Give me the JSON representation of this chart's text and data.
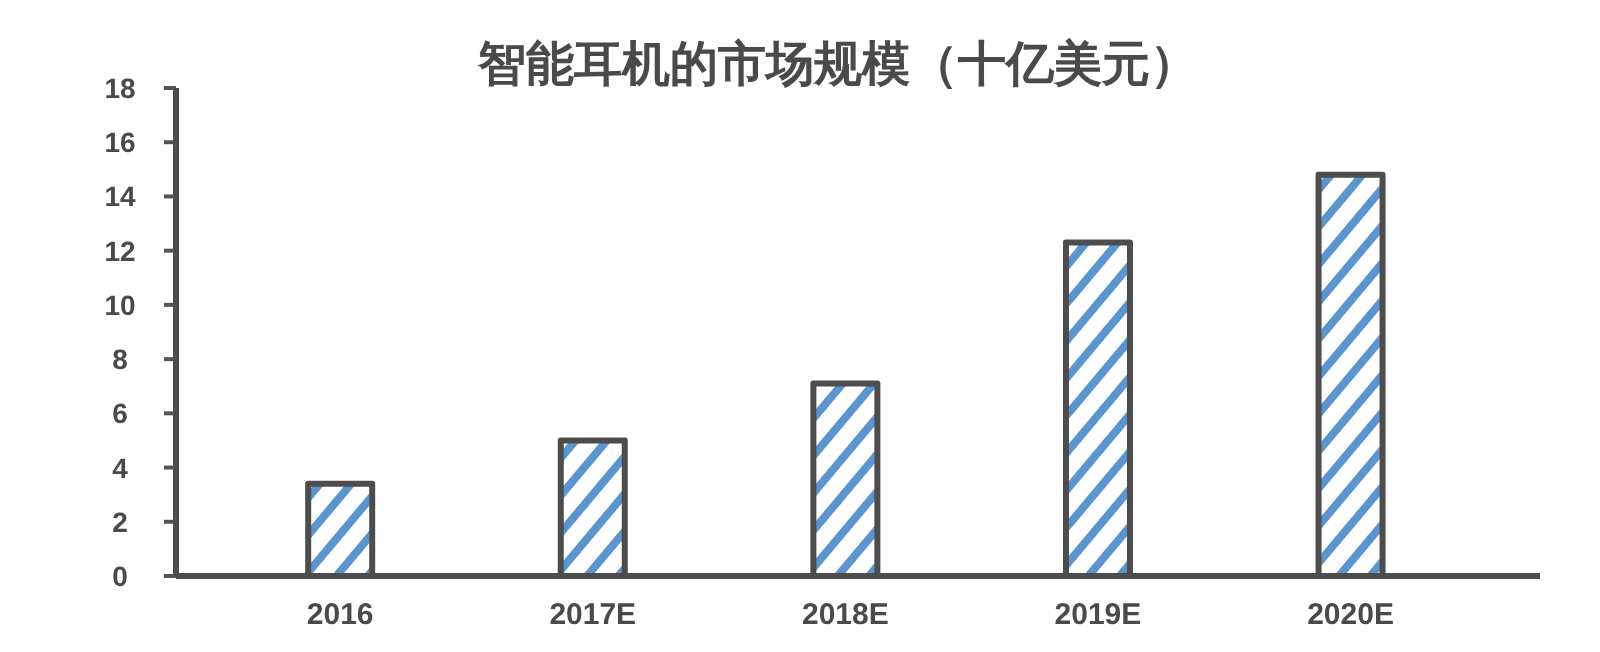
{
  "chart_data": {
    "type": "bar",
    "title": "智能耳机的市场规模（十亿美元）",
    "categories": [
      "2016",
      "2017E",
      "2018E",
      "2019E",
      "2020E"
    ],
    "values": [
      3.4,
      5.0,
      7.1,
      12.3,
      14.8
    ],
    "color": "#5b95cf",
    "ylim": [
      0,
      18
    ],
    "yticks": [
      0,
      2,
      4,
      6,
      8,
      10,
      12,
      14,
      16,
      18
    ],
    "grid": false
  }
}
